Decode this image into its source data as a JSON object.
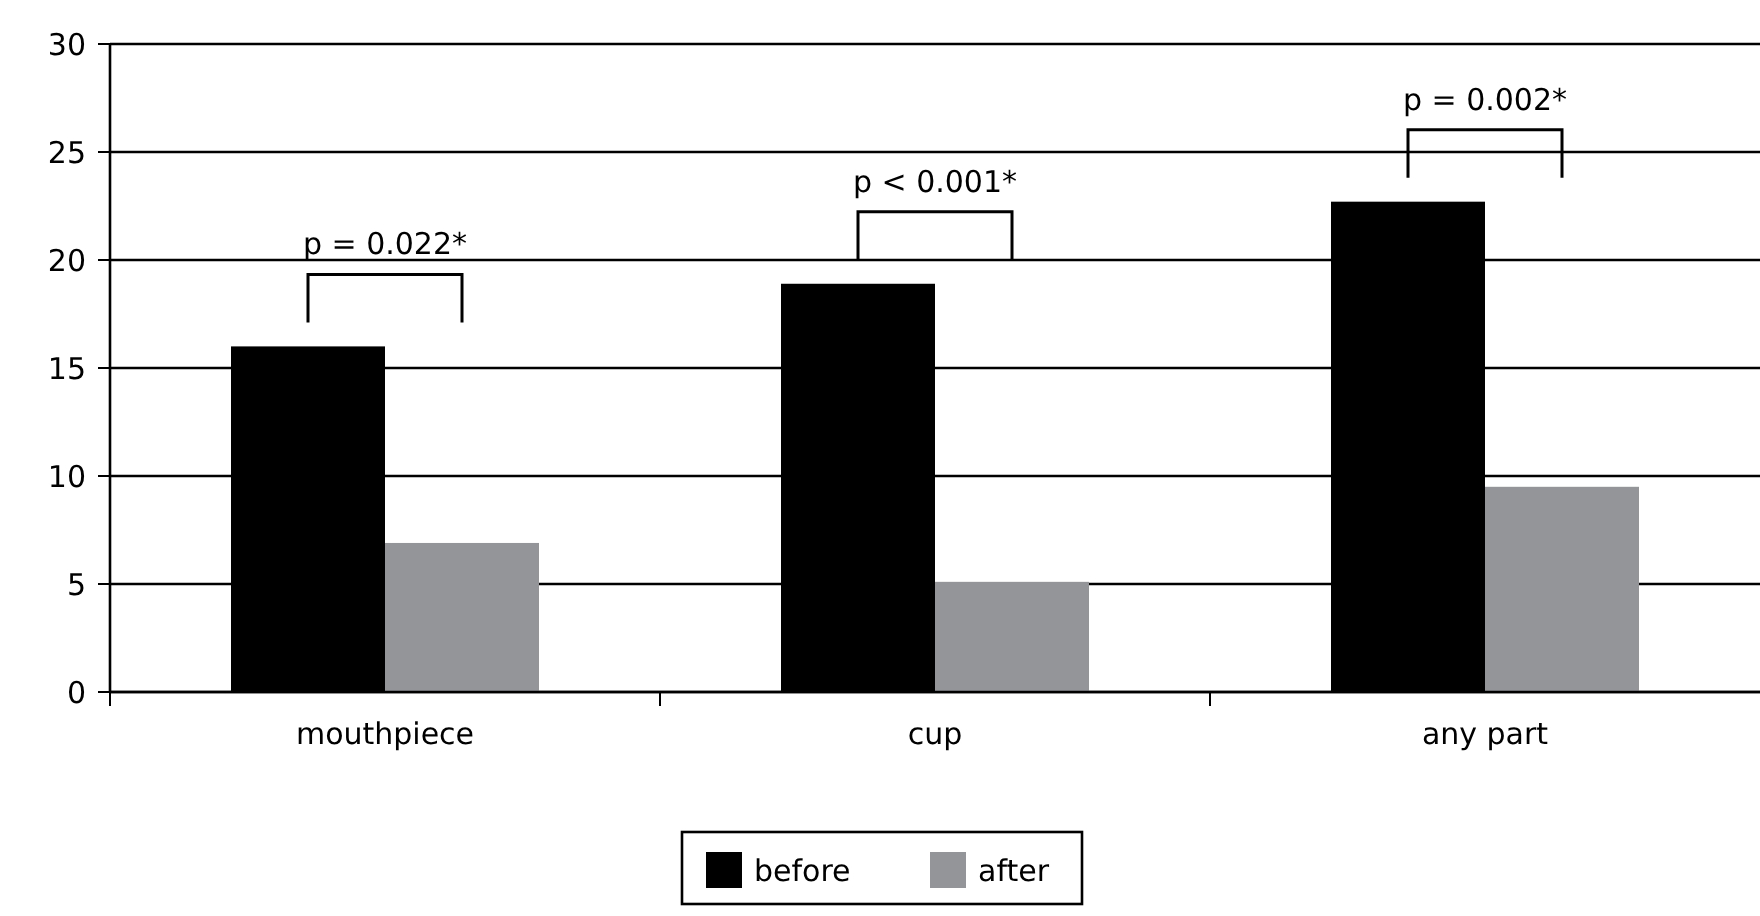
{
  "chart_data": {
    "type": "bar",
    "categories": [
      "mouthpiece",
      "cup",
      "any part"
    ],
    "series": [
      {
        "name": "before",
        "color": "#000000",
        "values": [
          16.0,
          18.9,
          22.7
        ]
      },
      {
        "name": "after",
        "color": "#939598",
        "values": [
          6.9,
          5.1,
          9.5
        ]
      }
    ],
    "ylim": [
      0,
      30
    ],
    "yticks": [
      0,
      5,
      10,
      15,
      20,
      25,
      30
    ],
    "grid": "y",
    "legend": "bottom",
    "annotations": [
      "p = 0.022*",
      "p < 0.001*",
      "p = 0.002*"
    ]
  }
}
